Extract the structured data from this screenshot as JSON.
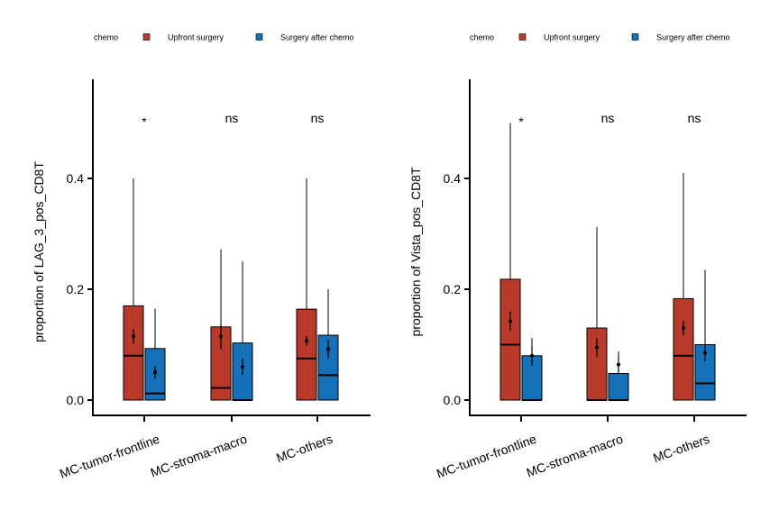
{
  "colors": {
    "upfront": "#b83a2a",
    "after": "#1570b8"
  },
  "chart_data": [
    {
      "type": "boxplot",
      "ylabel": "proportion of LAG_3_pos_CD8T",
      "ylim": [
        -0.028,
        0.58
      ],
      "yticks": [
        0.0,
        0.2,
        0.4
      ],
      "ytick_labels": [
        "0.0",
        "0.2",
        "0.4"
      ],
      "categories": [
        "MC-tumor-frontline",
        "MC-stroma-macro",
        "MC-others"
      ],
      "legend": {
        "title": "chemo",
        "items": [
          "Upfront surgery",
          "Surgery after chemo"
        ],
        "position": "top"
      },
      "significance": [
        "*",
        "ns",
        "ns"
      ],
      "series": [
        {
          "name": "Upfront surgery",
          "color": "#b83a2a",
          "boxes": [
            {
              "min": 0.0,
              "q1": 0.0,
              "median": 0.08,
              "q3": 0.17,
              "max": 0.4,
              "mean": 0.115,
              "ci": [
                0.102,
                0.128
              ]
            },
            {
              "min": 0.0,
              "q1": 0.0,
              "median": 0.022,
              "q3": 0.132,
              "max": 0.272,
              "mean": 0.115,
              "ci": [
                0.092,
                0.138
              ]
            },
            {
              "min": 0.0,
              "q1": 0.0,
              "median": 0.075,
              "q3": 0.164,
              "max": 0.4,
              "mean": 0.107,
              "ci": [
                0.098,
                0.116
              ]
            }
          ]
        },
        {
          "name": "Surgery after chemo",
          "color": "#1570b8",
          "boxes": [
            {
              "min": 0.0,
              "q1": 0.0,
              "median": 0.012,
              "q3": 0.093,
              "max": 0.165,
              "mean": 0.05,
              "ci": [
                0.038,
                0.062
              ]
            },
            {
              "min": 0.0,
              "q1": 0.0,
              "median": 0.0,
              "q3": 0.103,
              "max": 0.25,
              "mean": 0.06,
              "ci": [
                0.045,
                0.075
              ]
            },
            {
              "min": 0.0,
              "q1": 0.0,
              "median": 0.045,
              "q3": 0.117,
              "max": 0.2,
              "mean": 0.092,
              "ci": [
                0.075,
                0.109
              ]
            }
          ]
        }
      ]
    },
    {
      "type": "boxplot",
      "ylabel": "proportion of Vista_pos_CD8T",
      "ylim": [
        -0.028,
        0.58
      ],
      "yticks": [
        0.0,
        0.2,
        0.4
      ],
      "ytick_labels": [
        "0.0",
        "0.2",
        "0.4"
      ],
      "categories": [
        "MC-tumor-frontline",
        "MC-stroma-macro",
        "MC-others"
      ],
      "legend": {
        "title": "chemo",
        "items": [
          "Upfront surgery",
          "Surgery after chemo"
        ],
        "position": "top"
      },
      "significance": [
        "*",
        "ns",
        "ns"
      ],
      "series": [
        {
          "name": "Upfront surgery",
          "color": "#b83a2a",
          "boxes": [
            {
              "min": 0.0,
              "q1": 0.0,
              "median": 0.1,
              "q3": 0.218,
              "max": 0.5,
              "mean": 0.142,
              "ci": [
                0.125,
                0.16
              ]
            },
            {
              "min": 0.0,
              "q1": 0.0,
              "median": 0.0,
              "q3": 0.13,
              "max": 0.312,
              "mean": 0.095,
              "ci": [
                0.078,
                0.112
              ]
            },
            {
              "min": 0.0,
              "q1": 0.0,
              "median": 0.08,
              "q3": 0.183,
              "max": 0.41,
              "mean": 0.13,
              "ci": [
                0.117,
                0.143
              ]
            }
          ]
        },
        {
          "name": "Surgery after chemo",
          "color": "#1570b8",
          "boxes": [
            {
              "min": 0.0,
              "q1": 0.0,
              "median": 0.0,
              "q3": 0.08,
              "max": 0.112,
              "mean": 0.08,
              "ci": [
                0.062,
                0.098
              ]
            },
            {
              "min": 0.0,
              "q1": 0.0,
              "median": 0.0,
              "q3": 0.048,
              "max": 0.088,
              "mean": 0.064,
              "ci": [
                0.05,
                0.078
              ]
            },
            {
              "min": 0.0,
              "q1": 0.0,
              "median": 0.03,
              "q3": 0.1,
              "max": 0.235,
              "mean": 0.085,
              "ci": [
                0.07,
                0.1
              ]
            }
          ]
        }
      ]
    }
  ]
}
